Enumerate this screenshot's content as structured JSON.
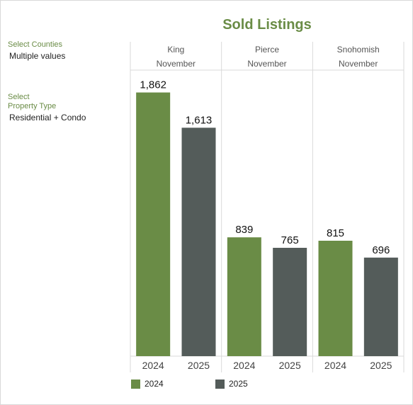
{
  "title": "Sold Listings",
  "filters": [
    {
      "label_lines": [
        "Select Counties"
      ],
      "value": "Multiple values"
    },
    {
      "label_lines": [
        "Select",
        "Property Type"
      ],
      "value": "Residential + Condo"
    }
  ],
  "colors": {
    "2024": "#6a8c46",
    "2025": "#545c5a",
    "grid": "#d9d9d9",
    "title": "#6a8c46"
  },
  "chart_data": {
    "type": "bar",
    "panels": [
      {
        "county": "King",
        "month": "November"
      },
      {
        "county": "Pierce",
        "month": "November"
      },
      {
        "county": "Snohomish",
        "month": "November"
      }
    ],
    "categories": [
      "2024",
      "2025"
    ],
    "series": [
      {
        "county": "King",
        "values": [
          1862,
          1613
        ],
        "labels": [
          "1,862",
          "1,613"
        ]
      },
      {
        "county": "Pierce",
        "values": [
          839,
          765
        ],
        "labels": [
          "839",
          "765"
        ]
      },
      {
        "county": "Snohomish",
        "values": [
          815,
          696
        ],
        "labels": [
          "815",
          "696"
        ]
      }
    ],
    "legend": [
      {
        "name": "2024"
      },
      {
        "name": "2025"
      }
    ],
    "ylim": [
      0,
      2000
    ],
    "legend_position": "bottom-left",
    "grid": false
  }
}
